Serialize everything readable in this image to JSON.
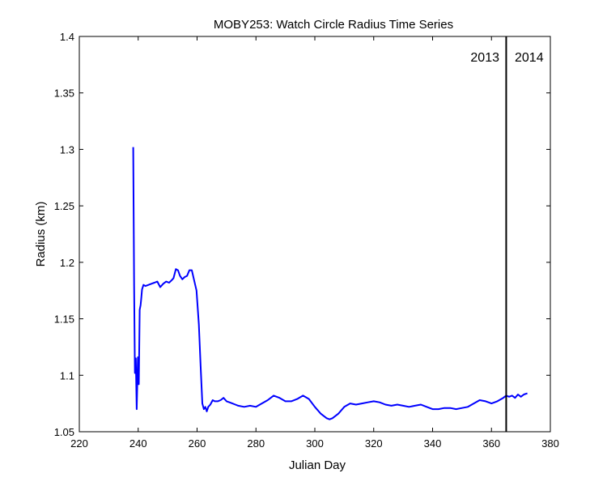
{
  "chart_data": {
    "type": "line",
    "title": "MOBY253: Watch Circle Radius Time Series",
    "xlabel": "Julian Day",
    "ylabel": "Radius (km)",
    "xlim": [
      220,
      380
    ],
    "ylim": [
      1.05,
      1.4
    ],
    "xticks": [
      220,
      240,
      260,
      280,
      300,
      320,
      340,
      360,
      380
    ],
    "yticks": [
      1.05,
      1.1,
      1.15,
      1.2,
      1.25,
      1.3,
      1.35,
      1.4
    ],
    "grid": false,
    "line_color": "#0000ff",
    "series": [
      {
        "x": [
          238.3,
          238.6,
          238.9,
          239.2,
          239.5,
          239.9,
          240.2,
          240.5,
          240.8,
          241.0,
          241.3,
          241.8,
          242.5,
          243.5,
          244.5,
          245.5,
          246.5,
          247.5,
          248.5,
          249.5,
          250.5,
          251.3,
          252.0,
          252.8,
          253.5,
          254.2,
          255.0,
          255.8,
          256.6,
          257.4,
          258.2,
          259.0,
          259.8,
          260.6,
          261.2,
          261.8,
          262.3,
          262.8,
          263.3,
          263.8,
          264.5,
          265.3,
          266.0,
          267.0,
          268.0,
          269.0,
          270.0,
          271.0,
          272.0,
          273.0,
          274.0,
          276.0,
          278.0,
          280.0,
          282.0,
          284.0,
          286.0,
          288.0,
          290.0,
          292.0,
          294.0,
          296.0,
          298.0,
          300.0,
          302.0,
          304.0,
          305.0,
          306.0,
          308.0,
          310.0,
          312.0,
          314.0,
          316.0,
          318.0,
          320.0,
          322.0,
          324.0,
          326.0,
          328.0,
          330.0,
          332.0,
          334.0,
          336.0,
          338.0,
          340.0,
          342.0,
          344.0,
          346.0,
          348.0,
          350.0,
          352.0,
          354.0,
          356.0,
          358.0,
          360.0,
          362.0,
          364.0,
          365.0,
          366.0,
          367.0,
          368.0,
          369.0,
          370.0,
          371.0,
          372.2
        ],
        "y": [
          1.302,
          1.18,
          1.102,
          1.115,
          1.07,
          1.116,
          1.092,
          1.158,
          1.162,
          1.167,
          1.176,
          1.18,
          1.179,
          1.18,
          1.181,
          1.182,
          1.183,
          1.178,
          1.181,
          1.183,
          1.182,
          1.184,
          1.186,
          1.194,
          1.193,
          1.188,
          1.185,
          1.187,
          1.188,
          1.193,
          1.193,
          1.184,
          1.175,
          1.145,
          1.108,
          1.075,
          1.07,
          1.072,
          1.068,
          1.072,
          1.074,
          1.078,
          1.077,
          1.077,
          1.078,
          1.08,
          1.077,
          1.076,
          1.075,
          1.074,
          1.073,
          1.072,
          1.073,
          1.072,
          1.075,
          1.078,
          1.082,
          1.08,
          1.077,
          1.077,
          1.079,
          1.082,
          1.079,
          1.072,
          1.066,
          1.062,
          1.061,
          1.062,
          1.066,
          1.072,
          1.075,
          1.074,
          1.075,
          1.076,
          1.077,
          1.076,
          1.074,
          1.073,
          1.074,
          1.073,
          1.072,
          1.073,
          1.074,
          1.072,
          1.07,
          1.07,
          1.071,
          1.071,
          1.07,
          1.071,
          1.072,
          1.075,
          1.078,
          1.077,
          1.075,
          1.077,
          1.08,
          1.082,
          1.081,
          1.082,
          1.08,
          1.083,
          1.081,
          1.083,
          1.084
        ]
      }
    ],
    "annotations": {
      "year_boundary_x": 365,
      "year_left_label": "2013",
      "year_right_label": "2014"
    }
  }
}
